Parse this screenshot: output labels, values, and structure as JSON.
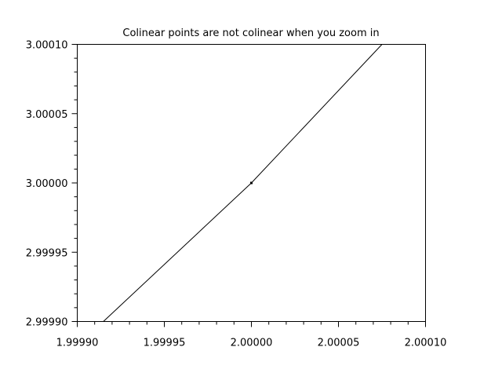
{
  "chart_data": {
    "type": "line",
    "title": "Colinear points are not colinear when you zoom in",
    "xlabel": "",
    "ylabel": "",
    "xlim": [
      1.9999,
      2.0001
    ],
    "ylim": [
      2.9999,
      3.0001
    ],
    "grid": false,
    "xticks": [
      "1.99990",
      "1.99995",
      "2.00000",
      "2.00005",
      "2.00010"
    ],
    "yticks": [
      "2.99990",
      "2.99995",
      "3.00000",
      "3.00005",
      "3.00010"
    ],
    "series": [
      {
        "x": [
          1.999915,
          2.0,
          2.000075
        ],
        "y": [
          2.9999,
          3.0,
          3.0001
        ],
        "color": "#000000"
      }
    ],
    "markers": [
      {
        "x": 2.0,
        "y": 3.0,
        "color": "#000000"
      }
    ]
  }
}
